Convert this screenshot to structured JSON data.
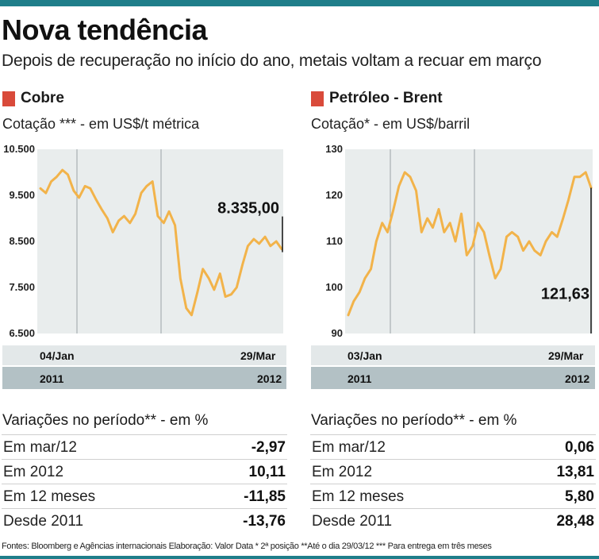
{
  "header": {
    "title": "Nova tendência",
    "subtitle": "Depois de recuperação no início do ano, metais voltam a recuar em março"
  },
  "colors": {
    "accent_bar": "#1f7e8a",
    "title_square": "#d94a3a",
    "series_line": "#f2b34a",
    "chart_bg": "#e9eded",
    "band_light": "#e3e8e9",
    "band_dark": "#b3c1c5"
  },
  "panels": [
    {
      "title": "Cobre",
      "subtitle": "Cotação *** - em US$/t métrica",
      "x_start_label": "04/Jan",
      "x_end_label": "29/Mar",
      "year_start": "2011",
      "year_end": "2012",
      "last_value_label": "8.335,00",
      "variations_title": "Variações no período** - em %",
      "variations": [
        {
          "label": "Em mar/12",
          "value": "-2,97"
        },
        {
          "label": "Em 2012",
          "value": "10,11"
        },
        {
          "label": "Em 12 meses",
          "value": "-11,85"
        },
        {
          "label": "Desde 2011",
          "value": "-13,76"
        }
      ]
    },
    {
      "title": "Petróleo - Brent",
      "subtitle": "Cotação* - em US$/barril",
      "x_start_label": "03/Jan",
      "x_end_label": "29/Mar",
      "year_start": "2011",
      "year_end": "2012",
      "last_value_label": "121,63",
      "variations_title": "Variações no período** - em %",
      "variations": [
        {
          "label": "Em mar/12",
          "value": "0,06"
        },
        {
          "label": "Em 2012",
          "value": "13,81"
        },
        {
          "label": "Em 12 meses",
          "value": "5,80"
        },
        {
          "label": "Desde 2011",
          "value": "28,48"
        }
      ]
    }
  ],
  "footer": "Fontes: Bloomberg e Agências internacionais Elaboração: Valor Data * 2ª posição **Até o dia 29/03/12 *** Para entrega em três meses",
  "chart_data": [
    {
      "type": "line",
      "title": "Cobre",
      "ylabel": "Cotação *** - em US$/t métrica",
      "ylim": [
        6500,
        10500
      ],
      "yticks": [
        "10.500",
        "9.500",
        "8.500",
        "7.500",
        "6.500"
      ],
      "ytick_values": [
        10500,
        9500,
        8500,
        7500,
        6500
      ],
      "x_range": [
        "04/Jan/2011",
        "29/Mar/2012"
      ],
      "grid": "vertical",
      "last_value": 8335.0,
      "series": [
        {
          "x": [
            "2011-01-04",
            "2011-01-14",
            "2011-01-24",
            "2011-02-03",
            "2011-02-14",
            "2011-02-24",
            "2011-03-07",
            "2011-03-17",
            "2011-03-28",
            "2011-04-07",
            "2011-04-18",
            "2011-04-28",
            "2011-05-09",
            "2011-05-19",
            "2011-05-30",
            "2011-06-09",
            "2011-06-20",
            "2011-06-30",
            "2011-07-11",
            "2011-07-21",
            "2011-08-01",
            "2011-08-11",
            "2011-08-22",
            "2011-09-01",
            "2011-09-12",
            "2011-09-22",
            "2011-10-03",
            "2011-10-13",
            "2011-10-24",
            "2011-11-03",
            "2011-11-14",
            "2011-11-24",
            "2011-12-05",
            "2011-12-15",
            "2011-12-26",
            "2012-01-05",
            "2012-01-16",
            "2012-01-26",
            "2012-02-06",
            "2012-02-16",
            "2012-02-27",
            "2012-03-08",
            "2012-03-19",
            "2012-03-29"
          ],
          "y": [
            9650,
            9550,
            9800,
            9900,
            10050,
            9950,
            9600,
            9450,
            9700,
            9650,
            9400,
            9200,
            9000,
            8700,
            8950,
            9050,
            8900,
            9100,
            9550,
            9700,
            9800,
            9050,
            8900,
            9150,
            8850,
            7700,
            7050,
            6900,
            7400,
            7900,
            7700,
            7450,
            7800,
            7300,
            7350,
            7500,
            8000,
            8400,
            8550,
            8450,
            8600,
            8400,
            8500,
            8335
          ]
        }
      ]
    },
    {
      "type": "line",
      "title": "Petróleo - Brent",
      "ylabel": "Cotação* - em US$/barril",
      "ylim": [
        90,
        130
      ],
      "yticks": [
        "130",
        "120",
        "110",
        "100",
        "90"
      ],
      "ytick_values": [
        130,
        120,
        110,
        100,
        90
      ],
      "x_range": [
        "03/Jan/2011",
        "29/Mar/2012"
      ],
      "grid": "vertical",
      "last_value": 121.63,
      "series": [
        {
          "x": [
            "2011-01-03",
            "2011-01-13",
            "2011-01-24",
            "2011-02-03",
            "2011-02-14",
            "2011-02-24",
            "2011-03-07",
            "2011-03-17",
            "2011-03-28",
            "2011-04-07",
            "2011-04-18",
            "2011-04-28",
            "2011-05-09",
            "2011-05-19",
            "2011-05-30",
            "2011-06-09",
            "2011-06-20",
            "2011-06-30",
            "2011-07-11",
            "2011-07-21",
            "2011-08-01",
            "2011-08-11",
            "2011-08-22",
            "2011-09-01",
            "2011-09-12",
            "2011-09-22",
            "2011-10-03",
            "2011-10-13",
            "2011-10-24",
            "2011-11-03",
            "2011-11-14",
            "2011-11-24",
            "2011-12-05",
            "2011-12-15",
            "2011-12-26",
            "2012-01-05",
            "2012-01-16",
            "2012-01-26",
            "2012-02-06",
            "2012-02-16",
            "2012-02-27",
            "2012-03-08",
            "2012-03-19",
            "2012-03-29"
          ],
          "y": [
            94,
            97,
            99,
            102,
            104,
            110,
            114,
            112,
            117,
            122,
            125,
            124,
            121,
            112,
            115,
            113,
            117,
            112,
            114,
            110,
            116,
            107,
            109,
            114,
            112,
            107,
            102,
            104,
            111,
            112,
            111,
            108,
            110,
            108,
            107,
            110,
            112,
            111,
            115,
            119,
            124,
            124,
            125,
            121.63
          ]
        }
      ]
    }
  ]
}
